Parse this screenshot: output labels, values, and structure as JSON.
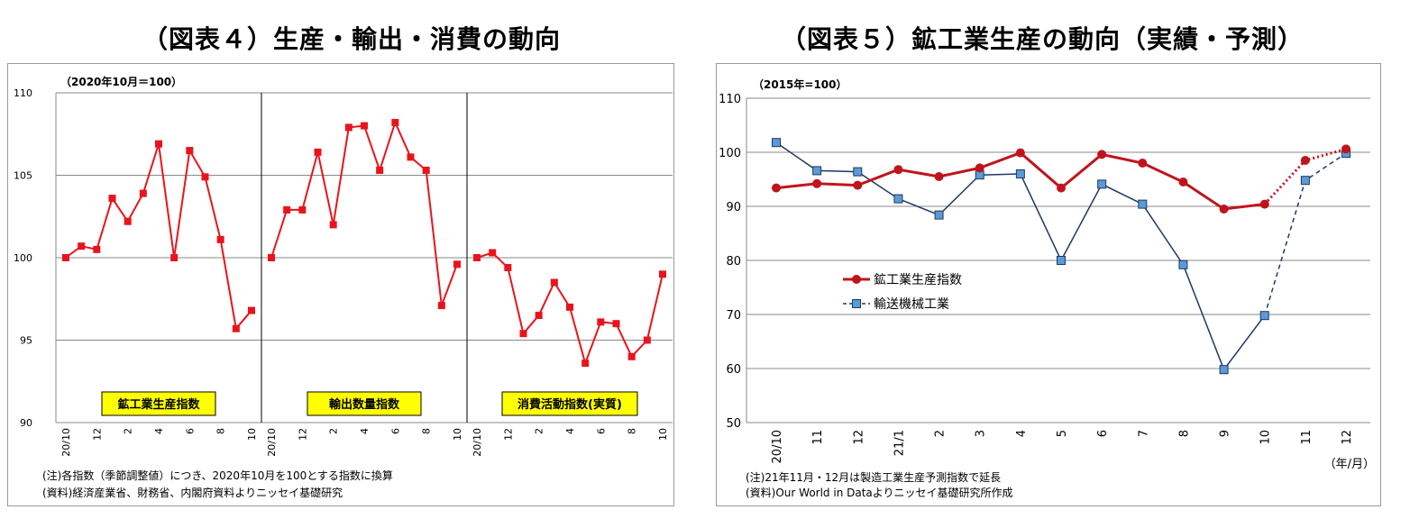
{
  "left": {
    "title": "（図表４）生産・輸出・消費の動向",
    "unit": "（2020年10月＝100）",
    "note1": "(注)各指数（季節調整値）につき、2020年10月を100とする指数に換算",
    "note2": "(資料)経済産業省、財務省、内閣府資料よりニッセイ基礎研究"
  },
  "right": {
    "title": "（図表５）鉱工業生産の動向（実績・予測）",
    "unit": "（2015年=100）",
    "note1": "(注)21年11月・12月は製造工業生産予測指数で延長",
    "note2": "(資料)Our World in Dataよりニッセイ基礎研究所作成",
    "xunit": "（年/月）"
  },
  "colors": {
    "red": "#e8141c",
    "darkred": "#c0141c",
    "blue": "#1f3864",
    "lightblue": "#5b9bd5",
    "label_bg": "#ffff00"
  },
  "chart_data": [
    {
      "type": "line",
      "ylim": [
        90,
        110
      ],
      "yticks": [
        90,
        95,
        100,
        105,
        110
      ],
      "grid": true,
      "x_tick_labels": [
        "20/10",
        "12",
        "2",
        "4",
        "6",
        "8",
        "10"
      ],
      "panels": [
        {
          "name": "鉱工業生産指数",
          "values": [
            100,
            100.7,
            100.5,
            103.6,
            102.2,
            103.9,
            106.9,
            100,
            106.5,
            104.9,
            101.1,
            95.7,
            96.8
          ]
        },
        {
          "name": "輸出数量指数",
          "values": [
            100,
            102.9,
            102.9,
            106.4,
            102.0,
            107.9,
            108.0,
            105.3,
            108.2,
            106.1,
            105.3,
            97.1,
            99.6
          ]
        },
        {
          "name": "消費活動指数(実質)",
          "values": [
            100,
            100.3,
            99.4,
            95.4,
            96.5,
            98.5,
            97.0,
            93.6,
            96.1,
            96.0,
            94.0,
            95.0,
            99.0
          ]
        }
      ]
    },
    {
      "type": "line",
      "ylim": [
        50,
        110
      ],
      "yticks": [
        50,
        60,
        70,
        80,
        90,
        100,
        110
      ],
      "grid": true,
      "categories": [
        "20/10",
        "11",
        "12",
        "21/1",
        "2",
        "3",
        "4",
        "5",
        "6",
        "7",
        "8",
        "9",
        "10",
        "11",
        "12"
      ],
      "legend_position": "middle-left",
      "series": [
        {
          "name": "鉱工業生産指数",
          "values": [
            93.4,
            94.2,
            93.9,
            96.8,
            95.5,
            97.1,
            99.9,
            93.4,
            99.6,
            98.0,
            94.5,
            89.5,
            90.4,
            98.5,
            100.6
          ],
          "forecast_from_index": 12,
          "marker": "circle"
        },
        {
          "name": "輸送機械工業",
          "values": [
            101.8,
            96.6,
            96.4,
            91.4,
            88.4,
            95.8,
            96.0,
            80.0,
            94.1,
            90.4,
            79.2,
            59.8,
            69.8,
            94.8,
            99.8
          ],
          "forecast_from_index": 12,
          "marker": "square"
        }
      ]
    }
  ]
}
